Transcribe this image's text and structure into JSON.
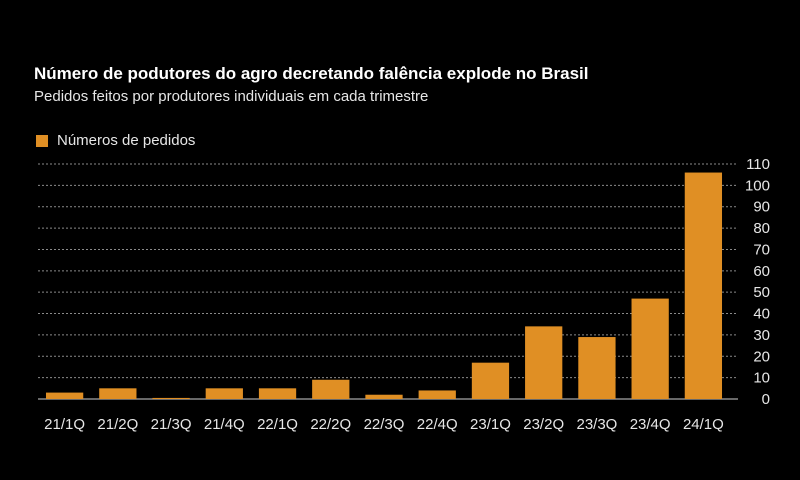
{
  "header": {
    "title": "Número de podutores do agro decretando falência explode no Brasil",
    "subtitle": "Pedidos feitos por produtores individuais em cada trimestre"
  },
  "colors": {
    "bar": "#e08f24",
    "grid": "#8a8a8a",
    "text": "#e6e6e6",
    "background": "#000000"
  },
  "chart_data": {
    "type": "bar",
    "title": "Número de podutores do agro decretando falência explode no Brasil",
    "subtitle": "Pedidos feitos por produtores individuais em cada trimestre",
    "categories": [
      "21/1Q",
      "21/2Q",
      "21/3Q",
      "21/4Q",
      "22/1Q",
      "22/2Q",
      "22/3Q",
      "22/4Q",
      "23/1Q",
      "23/2Q",
      "23/3Q",
      "23/4Q",
      "24/1Q"
    ],
    "series": [
      {
        "name": "Números de pedidos",
        "values": [
          3,
          5,
          0.5,
          5,
          5,
          9,
          2,
          4,
          17,
          34,
          29,
          47,
          106
        ]
      }
    ],
    "ylim": [
      0,
      110
    ],
    "yticks": [
      "0",
      "10",
      "20",
      "30",
      "40",
      "50",
      "60",
      "70",
      "80",
      "90",
      "100",
      "110"
    ],
    "y_axis_position": "right",
    "grid": true,
    "legend": "top-left"
  }
}
